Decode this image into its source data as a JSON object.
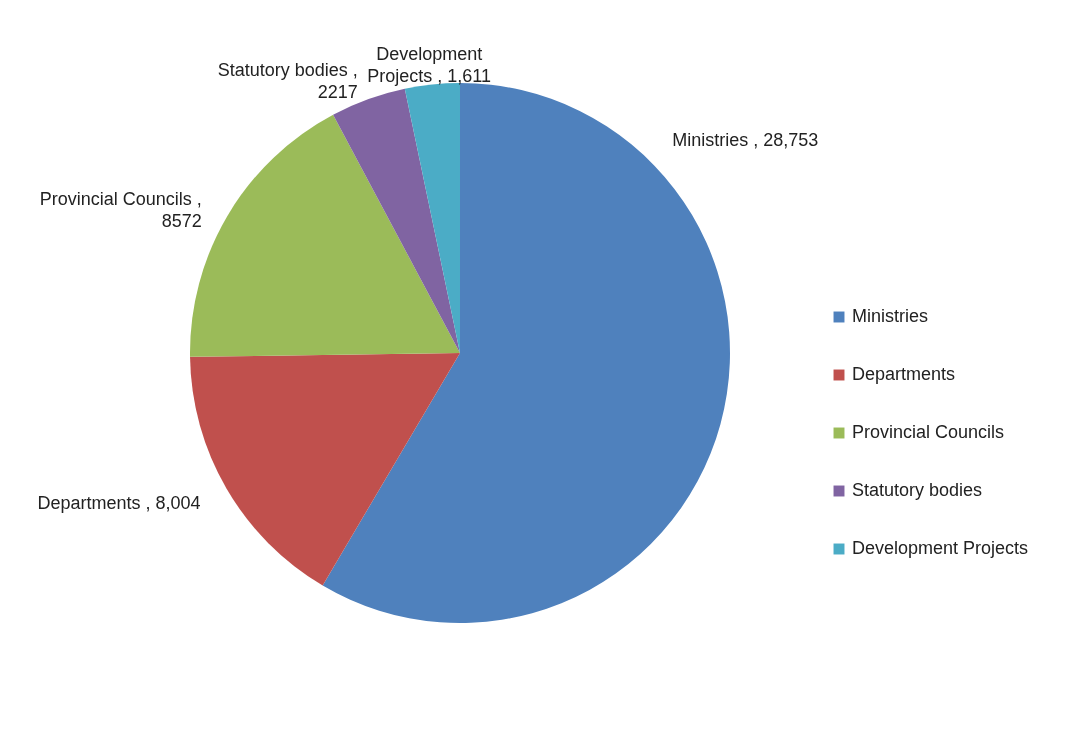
{
  "chart_data": {
    "type": "pie",
    "categories": [
      "Ministries",
      "Departments",
      "Provincial Councils",
      "Statutory bodies",
      "Development Projects"
    ],
    "values": [
      28753,
      8004,
      8572,
      2217,
      1611
    ],
    "value_labels": [
      "Ministries , 28,753",
      "Departments , 8,004",
      "Provincial Councils ,\n8572",
      "Statutory bodies ,\n2217",
      "Development\nProjects , 1,611"
    ],
    "colors": [
      "#4f81bd",
      "#c0504d",
      "#9bbb59",
      "#8064a2",
      "#4bacc6"
    ],
    "legend": "right"
  }
}
